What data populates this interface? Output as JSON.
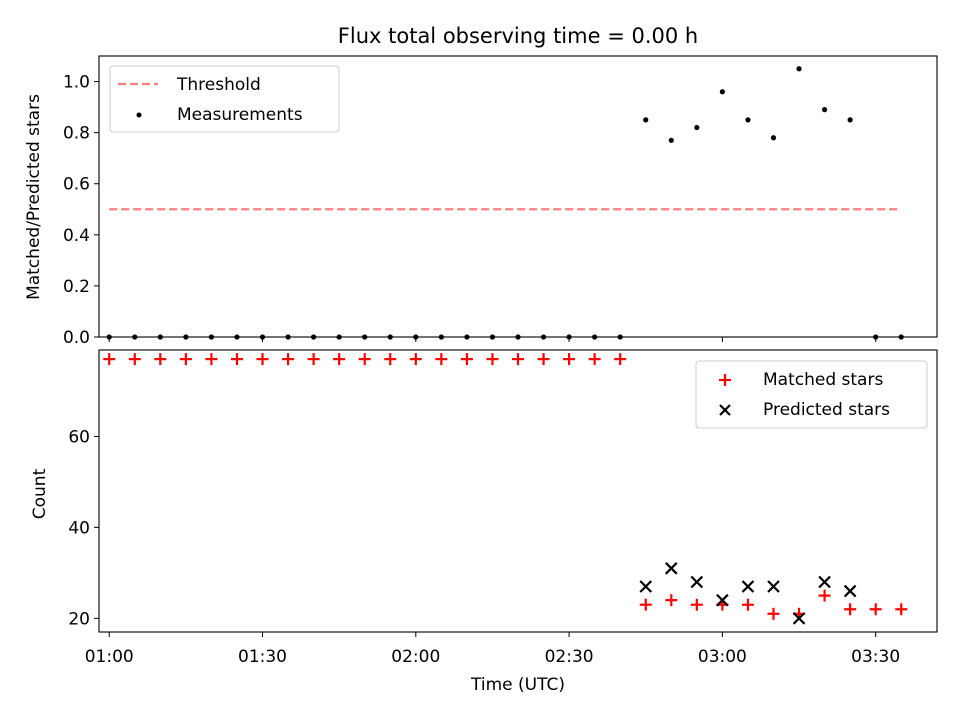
{
  "chart_data": [
    {
      "type": "scatter",
      "title": "Flux total observing time = 0.00 h",
      "xlabel": "",
      "ylabel": "Matched/Predicted stars",
      "ylim": [
        0,
        1.1
      ],
      "yticks": [
        "0.0",
        "0.2",
        "0.4",
        "0.6",
        "0.8",
        "1.0"
      ],
      "xlim": [
        "00:58",
        "03:42"
      ],
      "legend_position": "top-left",
      "threshold": {
        "name": "Threshold",
        "value": 0.5,
        "x_start": "01:00",
        "x_end": "03:35",
        "color": "#ff7f7f"
      },
      "series": [
        {
          "name": "Measurements",
          "color": "#000000",
          "x": [
            "01:00",
            "01:05",
            "01:10",
            "01:15",
            "01:20",
            "01:25",
            "01:30",
            "01:35",
            "01:40",
            "01:45",
            "01:50",
            "01:55",
            "02:00",
            "02:05",
            "02:10",
            "02:15",
            "02:20",
            "02:25",
            "02:30",
            "02:35",
            "02:40",
            "02:45",
            "02:50",
            "02:55",
            "03:00",
            "03:05",
            "03:10",
            "03:15",
            "03:20",
            "03:25",
            "03:30",
            "03:35"
          ],
          "y": [
            0,
            0,
            0,
            0,
            0,
            0,
            0,
            0,
            0,
            0,
            0,
            0,
            0,
            0,
            0,
            0,
            0,
            0,
            0,
            0,
            0,
            0.85,
            0.77,
            0.82,
            0.96,
            0.85,
            0.78,
            1.05,
            0.89,
            0.85,
            0,
            0
          ]
        }
      ]
    },
    {
      "type": "scatter",
      "title": "",
      "xlabel": "Time (UTC)",
      "ylabel": "Count",
      "ylim": [
        17,
        79
      ],
      "yticks": [
        "20",
        "40",
        "60"
      ],
      "xlim": [
        "00:58",
        "03:42"
      ],
      "xticks": [
        "01:00",
        "01:30",
        "02:00",
        "02:30",
        "03:00",
        "03:30"
      ],
      "legend_position": "top-right",
      "series": [
        {
          "name": "Matched stars",
          "color": "#ff0000",
          "marker": "+",
          "x": [
            "01:00",
            "01:05",
            "01:10",
            "01:15",
            "01:20",
            "01:25",
            "01:30",
            "01:35",
            "01:40",
            "01:45",
            "01:50",
            "01:55",
            "02:00",
            "02:05",
            "02:10",
            "02:15",
            "02:20",
            "02:25",
            "02:30",
            "02:35",
            "02:40",
            "02:45",
            "02:50",
            "02:55",
            "03:00",
            "03:05",
            "03:10",
            "03:15",
            "03:20",
            "03:25",
            "03:30",
            "03:35"
          ],
          "y": [
            77,
            77,
            77,
            77,
            77,
            77,
            77,
            77,
            77,
            77,
            77,
            77,
            77,
            77,
            77,
            77,
            77,
            77,
            77,
            77,
            77,
            23,
            24,
            23,
            23,
            23,
            21,
            21,
            25,
            22,
            22,
            22
          ]
        },
        {
          "name": "Predicted stars",
          "color": "#000000",
          "marker": "x",
          "x": [
            "02:45",
            "02:50",
            "02:55",
            "03:00",
            "03:05",
            "03:10",
            "03:15",
            "03:20",
            "03:25"
          ],
          "y": [
            27,
            31,
            28,
            24,
            27,
            27,
            20,
            28,
            26
          ]
        }
      ]
    }
  ]
}
